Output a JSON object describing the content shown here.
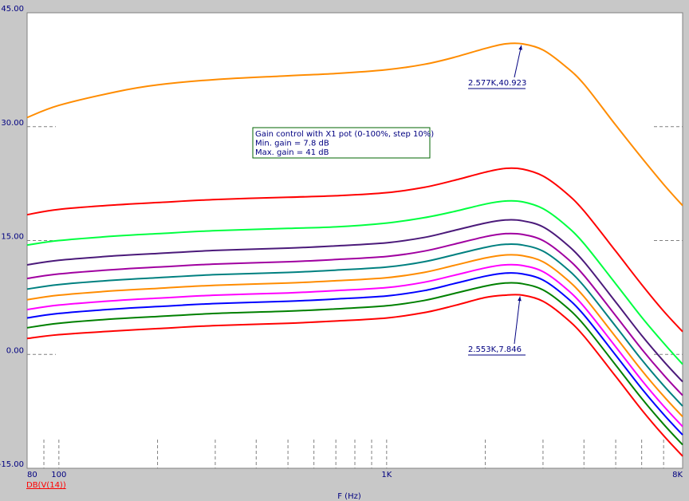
{
  "chart_data": {
    "type": "line",
    "title": "",
    "xlabel": "F (Hz)",
    "ylabel": "",
    "trace_label": "DB(V(14))",
    "x_scale": "log",
    "xlim": [
      80,
      8000
    ],
    "ylim": [
      -15,
      45
    ],
    "yticks": [
      {
        "value": 45,
        "label": "45.00"
      },
      {
        "value": 30,
        "label": "30.00"
      },
      {
        "value": 15,
        "label": "15.00"
      },
      {
        "value": 0,
        "label": "0.00"
      },
      {
        "value": -15,
        "label": "-15.00"
      }
    ],
    "xticks": [
      {
        "value": 80,
        "label": "80"
      },
      {
        "value": 100,
        "label": "100"
      },
      {
        "value": 1000,
        "label": "1K"
      },
      {
        "value": 8000,
        "label": "8K"
      }
    ],
    "grid": true,
    "legend_box": {
      "lines": [
        "Gain control with X1 pot (0-100%, step 10%)",
        "Min. gain = 7.8 dB",
        "Max. gain = 41 dB"
      ]
    },
    "annotations": [
      {
        "text": "2.577K,40.923",
        "x": 2577,
        "y": 40.923
      },
      {
        "text": "2.553K,7.846",
        "x": 2553,
        "y": 7.846
      }
    ],
    "x": [
      80,
      100,
      150,
      200,
      300,
      500,
      700,
      1000,
      1300,
      1600,
      2000,
      2300,
      2600,
      3000,
      3500,
      4000,
      5000,
      6000,
      7000,
      8000
    ],
    "series": [
      {
        "color": "#ff8c00",
        "values": [
          31.2,
          32.8,
          34.6,
          35.5,
          36.2,
          36.7,
          37.0,
          37.5,
          38.2,
          39.1,
          40.3,
          40.9,
          40.9,
          40.1,
          38.0,
          35.6,
          30.2,
          25.9,
          22.4,
          19.6
        ]
      },
      {
        "color": "#ff0000",
        "values": [
          18.4,
          19.1,
          19.7,
          20.0,
          20.4,
          20.7,
          20.9,
          21.3,
          22.0,
          22.9,
          24.0,
          24.5,
          24.4,
          23.5,
          21.4,
          18.9,
          13.6,
          9.2,
          5.7,
          3.0
        ]
      },
      {
        "color": "#00ff40",
        "values": [
          14.4,
          15.0,
          15.6,
          15.9,
          16.3,
          16.6,
          16.8,
          17.3,
          18.0,
          18.8,
          19.8,
          20.2,
          20.1,
          19.2,
          17.1,
          14.6,
          9.3,
          4.9,
          1.5,
          -1.3
        ]
      },
      {
        "color": "#4b1a7a",
        "values": [
          11.8,
          12.4,
          13.0,
          13.3,
          13.7,
          14.0,
          14.3,
          14.7,
          15.4,
          16.3,
          17.3,
          17.7,
          17.6,
          16.8,
          14.7,
          12.2,
          6.9,
          2.5,
          -0.9,
          -3.6
        ]
      },
      {
        "color": "#a000a0",
        "values": [
          10.0,
          10.6,
          11.2,
          11.5,
          11.9,
          12.2,
          12.5,
          12.9,
          13.6,
          14.5,
          15.5,
          15.9,
          15.8,
          15.0,
          12.9,
          10.4,
          5.1,
          0.7,
          -2.7,
          -5.4
        ]
      },
      {
        "color": "#008080",
        "values": [
          8.6,
          9.2,
          9.8,
          10.1,
          10.5,
          10.8,
          11.1,
          11.5,
          12.2,
          13.1,
          14.1,
          14.5,
          14.4,
          13.6,
          11.5,
          9.0,
          3.7,
          -0.7,
          -4.1,
          -6.8
        ]
      },
      {
        "color": "#ff8c00",
        "values": [
          7.2,
          7.8,
          8.4,
          8.7,
          9.1,
          9.4,
          9.7,
          10.1,
          10.8,
          11.7,
          12.7,
          13.1,
          13.0,
          12.2,
          10.1,
          7.6,
          2.3,
          -2.1,
          -5.5,
          -8.2
        ]
      },
      {
        "color": "#ff00ff",
        "values": [
          5.9,
          6.5,
          7.1,
          7.4,
          7.8,
          8.1,
          8.4,
          8.8,
          9.5,
          10.4,
          11.4,
          11.8,
          11.7,
          10.9,
          8.8,
          6.3,
          1.0,
          -3.4,
          -6.8,
          -9.5
        ]
      },
      {
        "color": "#0000ff",
        "values": [
          4.8,
          5.4,
          6.0,
          6.3,
          6.7,
          7.0,
          7.3,
          7.7,
          8.4,
          9.3,
          10.3,
          10.7,
          10.6,
          9.8,
          7.7,
          5.2,
          -0.1,
          -4.5,
          -7.9,
          -10.6
        ]
      },
      {
        "color": "#008000",
        "values": [
          3.5,
          4.1,
          4.7,
          5.0,
          5.4,
          5.7,
          6.0,
          6.4,
          7.1,
          8.0,
          9.0,
          9.4,
          9.3,
          8.5,
          6.4,
          3.9,
          -1.4,
          -5.8,
          -9.2,
          -11.9
        ]
      },
      {
        "color": "#ff0000",
        "values": [
          2.1,
          2.6,
          3.1,
          3.4,
          3.8,
          4.1,
          4.4,
          4.8,
          5.5,
          6.4,
          7.5,
          7.8,
          7.8,
          7.0,
          4.9,
          2.4,
          -2.9,
          -7.3,
          -10.7,
          -13.4
        ]
      }
    ]
  }
}
